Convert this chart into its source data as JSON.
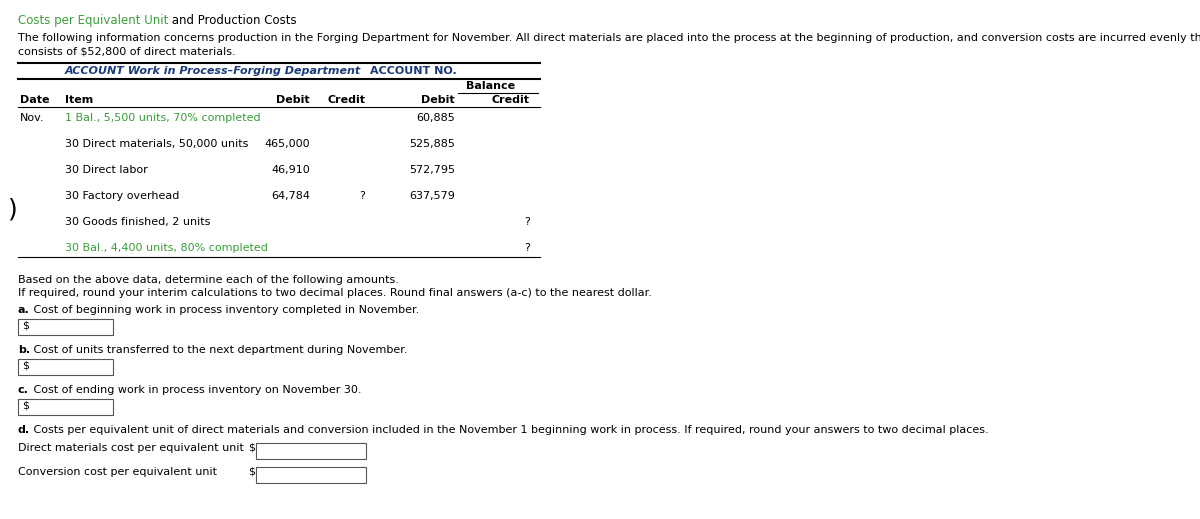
{
  "title_green": "Costs per Equivalent Unit",
  "title_black": " and Production Costs",
  "intro_line1": "The following information concerns production in the Forging Department for November. All direct materials are placed into the process at the beginning of production, and conversion costs are incurred evenly throughout the process. The beginning inventory",
  "intro_line2": "consists of $52,800 of direct materials.",
  "table_header_bold": "ACCOUNT Work in Process–Forging Department",
  "table_header_right": "ACCOUNT NO.",
  "balance_label": "Balance",
  "rows": [
    {
      "date": "Nov.",
      "item": "1 Bal., 5,500 units, 70% completed",
      "debit": "",
      "credit": "",
      "bal_debit": "60,885",
      "bal_credit": "",
      "item_green": true
    },
    {
      "date": "",
      "item": "30 Direct materials, 50,000 units",
      "debit": "465,000",
      "credit": "",
      "bal_debit": "525,885",
      "bal_credit": "",
      "item_green": false
    },
    {
      "date": "",
      "item": "30 Direct labor",
      "debit": "46,910",
      "credit": "",
      "bal_debit": "572,795",
      "bal_credit": "",
      "item_green": false
    },
    {
      "date": "",
      "item": "30 Factory overhead",
      "debit": "64,784",
      "credit": "?",
      "bal_debit": "637,579",
      "bal_credit": "",
      "item_green": false
    },
    {
      "date": "",
      "item": "30 Goods finished, 2 units",
      "debit": "",
      "credit": "",
      "bal_debit": "",
      "bal_credit": "?",
      "item_green": false
    },
    {
      "date": "",
      "item": "30 Bal., 4,400 units, 80% completed",
      "debit": "",
      "credit": "",
      "bal_debit": "",
      "bal_credit": "?",
      "item_green": true
    }
  ],
  "below_text1": "Based on the above data, determine each of the following amounts.",
  "below_text2": "If required, round your interim calculations to two decimal places. Round final answers (a-c) to the nearest dollar.",
  "q_a_label": "a.",
  "q_a_text": " Cost of beginning work in process inventory completed in November.",
  "q_b_label": "b.",
  "q_b_text": " Cost of units transferred to the next department during November.",
  "q_c_label": "c.",
  "q_c_text": " Cost of ending work in process inventory on November 30.",
  "q_d_label": "d.",
  "q_d_text": " Costs per equivalent unit of direct materials and conversion included in the November 1 beginning work in process. If required, round your answers to two decimal places.",
  "dm_label": "Direct materials cost per equivalent unit",
  "conv_label": "Conversion cost per equivalent unit",
  "green_color": "#3a9d3a",
  "header_color": "#1a3a7a",
  "text_color": "#000000",
  "bg_color": "#ffffff",
  "link_green": "#3a9d3a",
  "paren_color": "#000000"
}
